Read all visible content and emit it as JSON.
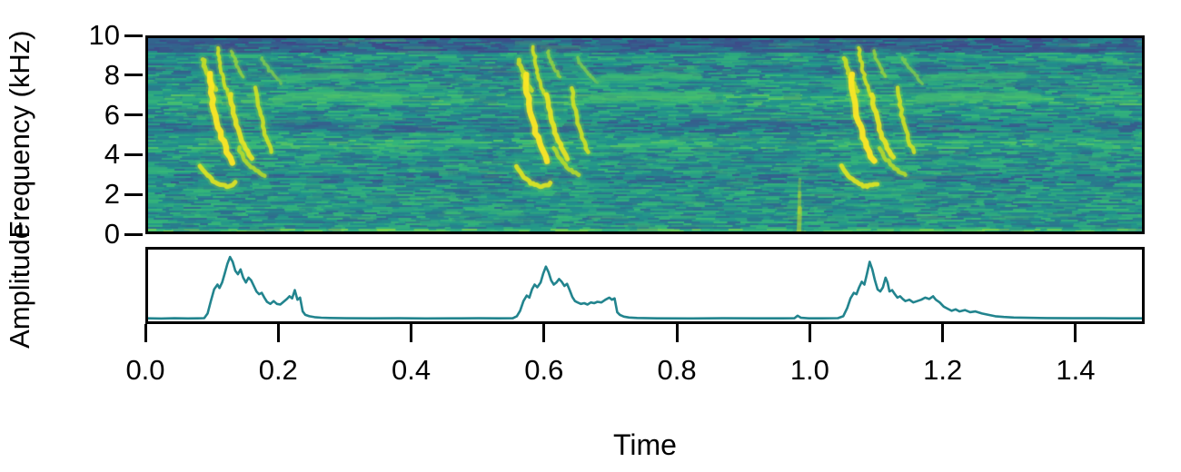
{
  "figure": {
    "x_axis_label": "Time",
    "y_axis_label_top": "Frequency (kHz)",
    "y_axis_label_bottom": "Amplitude",
    "x_tick_labels": [
      "0.0",
      "0.2",
      "0.4",
      "0.6",
      "0.8",
      "1.0",
      "1.2",
      "1.4"
    ],
    "y_tick_labels": [
      "10",
      "8",
      "6",
      "4",
      "2",
      "0"
    ],
    "colors": {
      "axis": "#000000",
      "envelope_line": "#22848e",
      "panel_background": "#ffffff",
      "spectrogram_peak": "#fde725",
      "spectrogram_background": "#21918c"
    }
  },
  "chart_data": [
    {
      "type": "heatmap",
      "name": "spectrogram",
      "xlabel": "Time",
      "ylabel": "Frequency (kHz)",
      "xlim": [
        0,
        1.504
      ],
      "ylim": [
        0,
        10
      ],
      "x_ticks": [
        0,
        0.2,
        0.4,
        0.6,
        0.8,
        1.0,
        1.2,
        1.4
      ],
      "y_ticks": [
        0,
        2,
        4,
        6,
        8,
        10
      ],
      "colormap": "viridis",
      "noise_seed": 11,
      "background_level": 0.47,
      "frequency_bands": [
        {
          "f_min": 9.25,
          "f_max": 10.0,
          "delta": -0.17
        },
        {
          "f_min": 8.2,
          "f_max": 8.7,
          "delta": -0.06
        },
        {
          "f_min": 6.6,
          "f_max": 7.15,
          "delta": 0.08
        },
        {
          "f_min": 5.2,
          "f_max": 5.8,
          "delta": -0.08
        },
        {
          "f_min": 4.35,
          "f_max": 4.75,
          "delta": 0.07
        },
        {
          "f_min": 2.5,
          "f_max": 3.0,
          "delta": -0.07
        },
        {
          "f_min": 0.0,
          "f_max": 0.18,
          "delta": 0.16
        }
      ],
      "call_start_times": [
        0.075,
        0.553,
        1.046
      ],
      "call_motif_strokes": [
        {
          "dt0": 0.008,
          "f0": 8.9,
          "dt1": 0.028,
          "f1": 7.3,
          "bt": -0.25,
          "bf": 0.0,
          "width": 5.0,
          "intensity": 0.78
        },
        {
          "dt0": 0.03,
          "f0": 9.5,
          "dt1": 0.048,
          "f1": 7.0,
          "bt": -0.3,
          "bf": 0.0,
          "width": 4.0,
          "intensity": 0.8
        },
        {
          "dt0": 0.052,
          "f0": 9.3,
          "dt1": 0.07,
          "f1": 8.0,
          "bt": -0.2,
          "bf": 0.0,
          "width": 3.5,
          "intensity": 0.62
        },
        {
          "dt0": 0.096,
          "f0": 9.0,
          "dt1": 0.126,
          "f1": 7.7,
          "bt": -0.15,
          "bf": 0.0,
          "width": 3.5,
          "intensity": 0.55
        },
        {
          "dt0": 0.018,
          "f0": 8.1,
          "dt1": 0.052,
          "f1": 3.6,
          "bt": -0.35,
          "bf": -0.3,
          "width": 6.5,
          "intensity": 1.0
        },
        {
          "dt0": 0.05,
          "f0": 7.1,
          "dt1": 0.082,
          "f1": 3.8,
          "bt": -0.3,
          "bf": -0.3,
          "width": 5.5,
          "intensity": 0.9
        },
        {
          "dt0": 0.088,
          "f0": 7.4,
          "dt1": 0.112,
          "f1": 4.1,
          "bt": -0.2,
          "bf": -0.2,
          "width": 4.5,
          "intensity": 0.8
        },
        {
          "dt0": 0.004,
          "f0": 3.4,
          "dt1": 0.056,
          "f1": 2.5,
          "bt": 0.0,
          "bf": -1.0,
          "width": 5.0,
          "intensity": 0.85
        },
        {
          "dt0": 0.062,
          "f0": 4.3,
          "dt1": 0.1,
          "f1": 2.9,
          "bt": -0.15,
          "bf": -0.3,
          "width": 4.5,
          "intensity": 0.72
        },
        {
          "dt0": 0.12,
          "f0": 6.85,
          "dt1": 0.3,
          "f1": 6.95,
          "bt": 0.0,
          "bf": 0.2,
          "width": 9.0,
          "intensity": 0.3
        },
        {
          "dt0": 0.13,
          "f0": 7.9,
          "dt1": 0.28,
          "f1": 8.05,
          "bt": 0.0,
          "bf": 0.1,
          "width": 7.0,
          "intensity": 0.26
        }
      ],
      "click": {
        "t": 0.985,
        "f_low": 0.0,
        "f_high": 2.7,
        "intensity": 0.85
      }
    },
    {
      "type": "line",
      "name": "amplitude-envelope",
      "xlabel": "Time",
      "ylabel": "Amplitude",
      "xlim": [
        0,
        1.504
      ],
      "ylim": [
        0,
        1
      ],
      "color": "#22848e",
      "points": [
        [
          0.0,
          0.03
        ],
        [
          0.02,
          0.028
        ],
        [
          0.04,
          0.031
        ],
        [
          0.06,
          0.029
        ],
        [
          0.075,
          0.03
        ],
        [
          0.085,
          0.033
        ],
        [
          0.09,
          0.1
        ],
        [
          0.095,
          0.28
        ],
        [
          0.1,
          0.45
        ],
        [
          0.105,
          0.52
        ],
        [
          0.108,
          0.47
        ],
        [
          0.112,
          0.55
        ],
        [
          0.116,
          0.68
        ],
        [
          0.12,
          0.82
        ],
        [
          0.124,
          0.92
        ],
        [
          0.128,
          0.85
        ],
        [
          0.132,
          0.72
        ],
        [
          0.136,
          0.67
        ],
        [
          0.14,
          0.74
        ],
        [
          0.144,
          0.62
        ],
        [
          0.148,
          0.55
        ],
        [
          0.152,
          0.62
        ],
        [
          0.156,
          0.58
        ],
        [
          0.16,
          0.5
        ],
        [
          0.164,
          0.42
        ],
        [
          0.168,
          0.38
        ],
        [
          0.172,
          0.4
        ],
        [
          0.176,
          0.33
        ],
        [
          0.18,
          0.27
        ],
        [
          0.185,
          0.24
        ],
        [
          0.19,
          0.28
        ],
        [
          0.195,
          0.24
        ],
        [
          0.2,
          0.23
        ],
        [
          0.205,
          0.27
        ],
        [
          0.21,
          0.31
        ],
        [
          0.214,
          0.35
        ],
        [
          0.218,
          0.32
        ],
        [
          0.222,
          0.44
        ],
        [
          0.226,
          0.3
        ],
        [
          0.23,
          0.33
        ],
        [
          0.234,
          0.13
        ],
        [
          0.238,
          0.08
        ],
        [
          0.244,
          0.06
        ],
        [
          0.252,
          0.047
        ],
        [
          0.262,
          0.04
        ],
        [
          0.275,
          0.036
        ],
        [
          0.3,
          0.032
        ],
        [
          0.34,
          0.03
        ],
        [
          0.38,
          0.031
        ],
        [
          0.42,
          0.029
        ],
        [
          0.46,
          0.03
        ],
        [
          0.5,
          0.031
        ],
        [
          0.53,
          0.03
        ],
        [
          0.552,
          0.032
        ],
        [
          0.558,
          0.06
        ],
        [
          0.563,
          0.14
        ],
        [
          0.568,
          0.28
        ],
        [
          0.573,
          0.36
        ],
        [
          0.577,
          0.33
        ],
        [
          0.581,
          0.45
        ],
        [
          0.585,
          0.52
        ],
        [
          0.589,
          0.48
        ],
        [
          0.594,
          0.55
        ],
        [
          0.598,
          0.68
        ],
        [
          0.602,
          0.78
        ],
        [
          0.606,
          0.7
        ],
        [
          0.61,
          0.58
        ],
        [
          0.614,
          0.52
        ],
        [
          0.618,
          0.55
        ],
        [
          0.622,
          0.6
        ],
        [
          0.626,
          0.56
        ],
        [
          0.63,
          0.5
        ],
        [
          0.634,
          0.53
        ],
        [
          0.638,
          0.44
        ],
        [
          0.642,
          0.34
        ],
        [
          0.646,
          0.28
        ],
        [
          0.65,
          0.26
        ],
        [
          0.655,
          0.24
        ],
        [
          0.66,
          0.25
        ],
        [
          0.665,
          0.23
        ],
        [
          0.67,
          0.26
        ],
        [
          0.675,
          0.25
        ],
        [
          0.68,
          0.27
        ],
        [
          0.686,
          0.26
        ],
        [
          0.692,
          0.3
        ],
        [
          0.698,
          0.33
        ],
        [
          0.702,
          0.3
        ],
        [
          0.706,
          0.32
        ],
        [
          0.71,
          0.12
        ],
        [
          0.714,
          0.08
        ],
        [
          0.72,
          0.055
        ],
        [
          0.728,
          0.042
        ],
        [
          0.74,
          0.035
        ],
        [
          0.77,
          0.03
        ],
        [
          0.82,
          0.029
        ],
        [
          0.87,
          0.031
        ],
        [
          0.92,
          0.03
        ],
        [
          0.96,
          0.03
        ],
        [
          0.978,
          0.031
        ],
        [
          0.983,
          0.068
        ],
        [
          0.988,
          0.038
        ],
        [
          1.0,
          0.03
        ],
        [
          1.02,
          0.03
        ],
        [
          1.044,
          0.033
        ],
        [
          1.052,
          0.06
        ],
        [
          1.058,
          0.18
        ],
        [
          1.063,
          0.32
        ],
        [
          1.068,
          0.4
        ],
        [
          1.072,
          0.38
        ],
        [
          1.076,
          0.48
        ],
        [
          1.08,
          0.56
        ],
        [
          1.084,
          0.52
        ],
        [
          1.088,
          0.68
        ],
        [
          1.092,
          0.85
        ],
        [
          1.096,
          0.74
        ],
        [
          1.1,
          0.58
        ],
        [
          1.104,
          0.45
        ],
        [
          1.108,
          0.42
        ],
        [
          1.112,
          0.48
        ],
        [
          1.116,
          0.62
        ],
        [
          1.119,
          0.55
        ],
        [
          1.122,
          0.42
        ],
        [
          1.126,
          0.44
        ],
        [
          1.13,
          0.38
        ],
        [
          1.134,
          0.33
        ],
        [
          1.138,
          0.35
        ],
        [
          1.142,
          0.31
        ],
        [
          1.146,
          0.28
        ],
        [
          1.152,
          0.3
        ],
        [
          1.158,
          0.26
        ],
        [
          1.164,
          0.28
        ],
        [
          1.17,
          0.3
        ],
        [
          1.176,
          0.33
        ],
        [
          1.182,
          0.31
        ],
        [
          1.188,
          0.35
        ],
        [
          1.192,
          0.3
        ],
        [
          1.198,
          0.26
        ],
        [
          1.204,
          0.2
        ],
        [
          1.21,
          0.17
        ],
        [
          1.216,
          0.14
        ],
        [
          1.222,
          0.16
        ],
        [
          1.228,
          0.13
        ],
        [
          1.236,
          0.15
        ],
        [
          1.244,
          0.12
        ],
        [
          1.252,
          0.13
        ],
        [
          1.262,
          0.1
        ],
        [
          1.272,
          0.08
        ],
        [
          1.282,
          0.06
        ],
        [
          1.295,
          0.05
        ],
        [
          1.31,
          0.042
        ],
        [
          1.33,
          0.038
        ],
        [
          1.36,
          0.034
        ],
        [
          1.4,
          0.032
        ],
        [
          1.44,
          0.031
        ],
        [
          1.47,
          0.03
        ],
        [
          1.504,
          0.03
        ]
      ]
    }
  ]
}
